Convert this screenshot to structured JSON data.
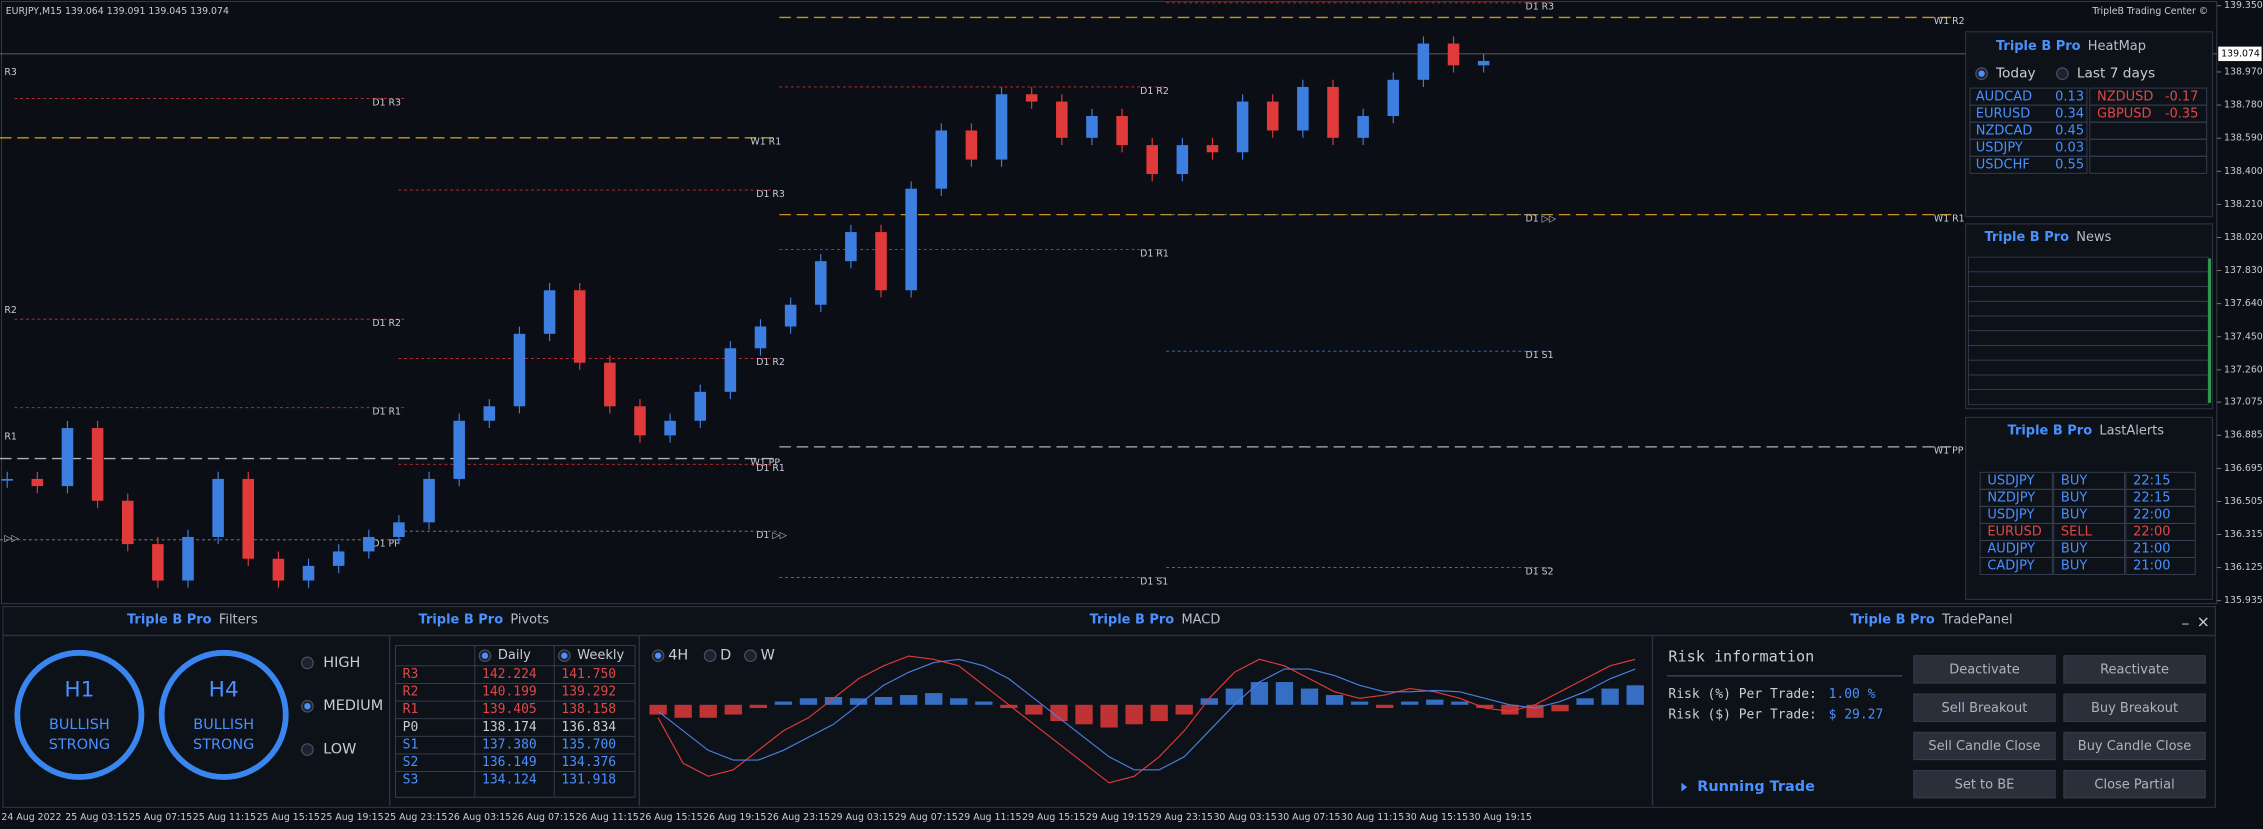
{
  "header": {
    "symbol_info": "EURJPY,M15  139.064 139.091 139.045 139.074",
    "brand": "TripleB Trading Center ©"
  },
  "chart_data": {
    "type": "candlestick",
    "values": [
      136.634,
      136.593,
      136.926,
      136.509,
      136.26,
      136.051,
      136.301,
      136.634,
      136.176,
      136.051,
      136.135,
      136.218,
      136.301,
      136.385,
      136.634,
      136.968,
      137.051,
      137.467,
      137.717,
      137.301,
      137.051,
      136.884,
      136.968,
      137.134,
      137.384,
      137.509,
      137.634,
      137.884,
      138.051,
      137.717,
      138.3,
      138.634,
      138.467,
      138.842,
      138.8,
      138.592,
      138.717,
      138.55,
      138.384,
      138.55,
      138.509,
      138.8,
      138.634,
      138.884,
      138.592,
      138.717,
      138.925,
      139.133,
      139.008,
      139.033
    ],
    "up_color": "#3d7fe0",
    "down_color": "#e03a3a",
    "ylim": [
      135.918,
      139.383
    ],
    "yticks": [
      {
        "value": 139.35,
        "label": "139.350"
      },
      {
        "value": 138.97,
        "label": "138.970"
      },
      {
        "value": 138.78,
        "label": "138.780"
      },
      {
        "value": 138.59,
        "label": "138.590"
      },
      {
        "value": 138.4,
        "label": "138.400"
      },
      {
        "value": 138.21,
        "label": "138.210"
      },
      {
        "value": 138.02,
        "label": "138.020"
      },
      {
        "value": 137.83,
        "label": "137.830"
      },
      {
        "value": 137.64,
        "label": "137.640"
      },
      {
        "value": 137.45,
        "label": "137.450"
      },
      {
        "value": 137.26,
        "label": "137.260"
      },
      137.075,
      136.885,
      136.695,
      136.505,
      136.315,
      136.125,
      135.935
    ],
    "current_price": 139.074,
    "x_labels": [
      "24 Aug 2022",
      "25 Aug 03:15",
      "25 Aug 07:15",
      "25 Aug 11:15",
      "25 Aug 15:15",
      "25 Aug 19:15",
      "25 Aug 23:15",
      "26 Aug 03:15",
      "26 Aug 07:15",
      "26 Aug 11:15",
      "26 Aug 15:15",
      "26 Aug 19:15",
      "26 Aug 23:15",
      "29 Aug 03:15",
      "29 Aug 07:15",
      "29 Aug 11:15",
      "29 Aug 15:15",
      "29 Aug 19:15",
      "29 Aug 23:15",
      "30 Aug 03:15",
      "30 Aug 07:15",
      "30 Aug 11:15",
      "30 Aug 15:15",
      "30 Aug 19:15"
    ],
    "pivots": [
      {
        "label": "W1 R2",
        "value": 139.283,
        "color": "#c8961e"
      },
      {
        "label": "W1 R1",
        "value": 138.592,
        "color": "#c8961e"
      },
      {
        "label": "W1 R1",
        "value": 138.151,
        "color": "#c8961e"
      },
      {
        "label": "W1 PP",
        "value": 136.751,
        "color": "#b0b0b0"
      },
      {
        "label": "W1 PP",
        "value": 136.818,
        "color": "#b0b0b0"
      },
      {
        "label": "D1 R3",
        "value": 138.817,
        "color": "#d03030"
      },
      {
        "label": "D1 R2",
        "value": 137.551,
        "color": "#d03030"
      },
      {
        "label": "D1 R1",
        "value": 137.043,
        "color": "#d03030"
      },
      {
        "label": "D1 R3",
        "value": 138.292,
        "color": "#d03030"
      },
      {
        "label": "D1 R2",
        "value": 137.326,
        "color": "#d03030"
      },
      {
        "label": "D1 R1",
        "value": 136.718,
        "color": "#d03030"
      },
      {
        "label": "D1 ▷▷",
        "value": 136.334,
        "color": "#888888"
      },
      {
        "label": "D1 PP",
        "value": 136.285,
        "color": "#888888"
      },
      {
        "label": "D1 S1",
        "value": 136.068,
        "color": "#3a7bd5"
      },
      {
        "label": "D1 R2",
        "value": 138.884,
        "color": "#d03030"
      },
      {
        "label": "D1 R1",
        "value": 137.951,
        "color": "#d03030"
      },
      {
        "label": "D1 ▷▷",
        "value": 138.151,
        "color": "#888888"
      },
      {
        "label": "D1 S1",
        "value": 137.367,
        "color": "#3a7bd5"
      },
      {
        "label": "D1 S2",
        "value": 136.126,
        "color": "#3a7bd5"
      },
      {
        "label": "D1 R3",
        "value": 139.367,
        "color": "#d03030"
      },
      {
        "label": "R3",
        "value": 138.992,
        "color": "#d03030"
      },
      {
        "label": "R2",
        "value": 137.626,
        "color": "#d03030"
      },
      {
        "label": "R1",
        "value": 136.901,
        "color": "#d03030"
      },
      {
        "label": "▷▷",
        "value": 136.318,
        "color": "#888888"
      }
    ]
  },
  "filters": {
    "brand": "Triple B Pro",
    "title": "Filters",
    "gauges": [
      {
        "tf": "H1",
        "l1": "BULLISH",
        "l2": "STRONG"
      },
      {
        "tf": "H4",
        "l1": "BULLISH",
        "l2": "STRONG"
      }
    ],
    "options": [
      "HIGH",
      "MEDIUM",
      "LOW"
    ]
  },
  "pivots_panel": {
    "brand": "Triple B Pro",
    "title": "Pivots",
    "columns": [
      "Daily",
      "Weekly"
    ],
    "rows": [
      [
        "R3",
        "142.224",
        "141.750"
      ],
      [
        "R2",
        "140.199",
        "139.292"
      ],
      [
        "R1",
        "139.405",
        "138.158"
      ],
      [
        "P0",
        "138.174",
        "136.834"
      ],
      [
        "S1",
        "137.380",
        "135.700"
      ],
      [
        "S2",
        "136.149",
        "134.376"
      ],
      [
        "S3",
        "134.124",
        "131.918"
      ]
    ]
  },
  "macd": {
    "brand": "Triple B Pro",
    "title": "MACD",
    "timeframes": [
      "4H",
      "D",
      "W"
    ],
    "histogram": [
      -0.15,
      -0.2,
      -0.2,
      -0.15,
      -0.05,
      0.05,
      0.1,
      0.12,
      0.1,
      0.12,
      0.15,
      0.18,
      0.1,
      0.05,
      -0.05,
      -0.15,
      -0.25,
      -0.3,
      -0.35,
      -0.3,
      -0.25,
      -0.15,
      0.1,
      0.25,
      0.35,
      0.35,
      0.25,
      0.15,
      0.05,
      -0.05,
      0.05,
      0.08,
      0.05,
      -0.05,
      -0.15,
      -0.2,
      -0.1,
      0.1,
      0.25,
      0.3
    ],
    "macd": [
      -0.2,
      -0.9,
      -1.1,
      -1.0,
      -0.7,
      -0.4,
      -0.2,
      0.1,
      0.4,
      0.6,
      0.75,
      0.7,
      0.6,
      0.3,
      0.0,
      -0.3,
      -0.6,
      -0.9,
      -1.2,
      -1.1,
      -0.8,
      -0.4,
      0.1,
      0.5,
      0.7,
      0.6,
      0.4,
      0.2,
      0.1,
      0.15,
      0.25,
      0.2,
      0.1,
      -0.05,
      -0.1,
      0.0,
      0.2,
      0.4,
      0.6,
      0.7
    ],
    "signal": [
      -0.1,
      -0.4,
      -0.7,
      -0.85,
      -0.85,
      -0.7,
      -0.5,
      -0.3,
      0.0,
      0.3,
      0.5,
      0.65,
      0.7,
      0.6,
      0.4,
      0.1,
      -0.2,
      -0.5,
      -0.8,
      -1.0,
      -1.0,
      -0.8,
      -0.4,
      0.0,
      0.35,
      0.55,
      0.55,
      0.45,
      0.3,
      0.2,
      0.2,
      0.22,
      0.2,
      0.1,
      0.0,
      -0.05,
      0.05,
      0.2,
      0.4,
      0.55
    ]
  },
  "trade_panel": {
    "brand": "Triple B Pro",
    "title": "TradePanel",
    "window_controls": [
      "_",
      "×"
    ],
    "risk_title": "Risk information",
    "risk": [
      {
        "label": "Risk (%) Per Trade:",
        "value": "1.00 %"
      },
      {
        "label": "Risk ($) Per Trade:",
        "value": "$ 29.27"
      }
    ],
    "running": "Running Trade",
    "buttons": [
      [
        "Deactivate",
        "Reactivate"
      ],
      [
        "Sell Breakout",
        "Buy Breakout"
      ],
      [
        "Sell Candle Close",
        "Buy Candle Close"
      ],
      [
        "Set to BE",
        "Close Partial"
      ]
    ]
  },
  "heatmap": {
    "brand": "Triple B Pro",
    "title": "HeatMap",
    "options": [
      "Today",
      "Last 7 days"
    ],
    "left": [
      [
        "AUDCAD",
        "0.13"
      ],
      [
        "EURUSD",
        "0.34"
      ],
      [
        "NZDCAD",
        "0.45"
      ],
      [
        "USDJPY",
        "0.03"
      ],
      [
        "USDCHF",
        "0.55"
      ]
    ],
    "right": [
      [
        "NZDUSD",
        "-0.17"
      ],
      [
        "GBPUSD",
        "-0.35"
      ]
    ]
  },
  "news": {
    "brand": "Triple B Pro",
    "title": "News"
  },
  "alerts": {
    "brand": "Triple B Pro",
    "title": "LastAlerts",
    "rows": [
      [
        "USDJPY",
        "BUY",
        "22:15"
      ],
      [
        "NZDJPY",
        "BUY",
        "22:15"
      ],
      [
        "USDJPY",
        "BUY",
        "22:00"
      ],
      [
        "EURUSD",
        "SELL",
        "22:00"
      ],
      [
        "AUDJPY",
        "BUY",
        "21:00"
      ],
      [
        "CADJPY",
        "BUY",
        "21:00"
      ]
    ]
  }
}
